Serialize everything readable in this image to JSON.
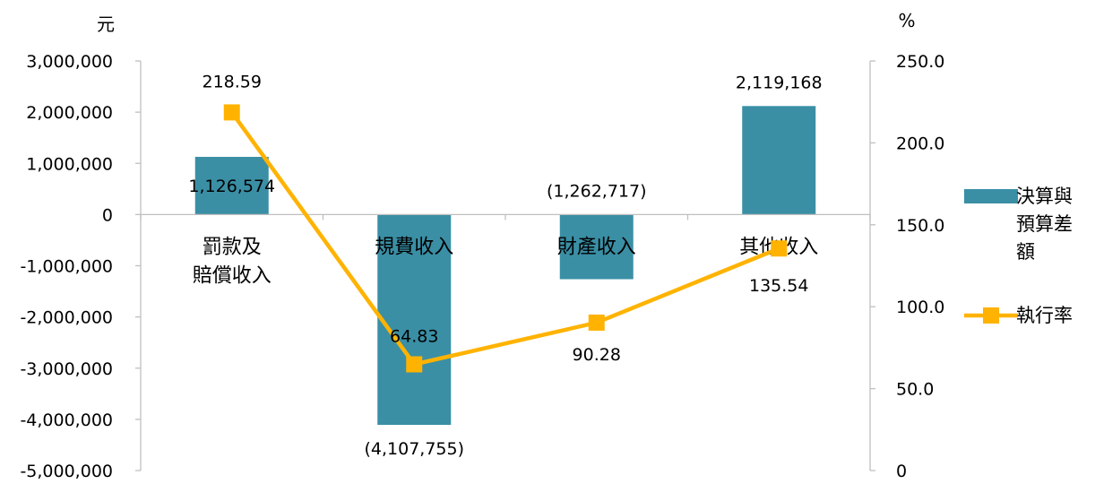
{
  "chart_data": {
    "type": "bar+line",
    "categories": [
      [
        "罰款及",
        "賠償收入"
      ],
      [
        "規費收入"
      ],
      [
        "財產收入"
      ],
      [
        "其他收入"
      ]
    ],
    "left_axis": {
      "unit": "元",
      "ylim": [
        -5000000,
        3000000
      ],
      "ticks": [
        3000000,
        2000000,
        1000000,
        0,
        -1000000,
        -2000000,
        -3000000,
        -4000000,
        -5000000
      ],
      "tick_labels": [
        "3,000,000",
        "2,000,000",
        "1,000,000",
        "0",
        "-1,000,000",
        "-2,000,000",
        "-3,000,000",
        "-4,000,000",
        "-5,000,000"
      ]
    },
    "right_axis": {
      "unit": "%",
      "ylim": [
        0,
        250
      ],
      "ticks": [
        250,
        200,
        150,
        100,
        50,
        0
      ],
      "tick_labels": [
        "250.0",
        "200.0",
        "150.0",
        "100.0",
        "50.0",
        "0"
      ]
    },
    "series": [
      {
        "name": "決算與預算差額",
        "legend_lines": [
          "決算與",
          "預算差",
          "額"
        ],
        "type": "bar",
        "axis": "left",
        "color": "#3a8fa5",
        "values": [
          1126574,
          -4107755,
          -1262717,
          2119168
        ],
        "labels": [
          "1,126,574",
          "(4,107,755)",
          "(1,262,717)",
          "2,119,168"
        ]
      },
      {
        "name": "執行率",
        "type": "line",
        "axis": "right",
        "color": "#ffb300",
        "values": [
          218.59,
          64.83,
          90.28,
          135.54
        ],
        "labels": [
          "218.59",
          "64.83",
          "90.28",
          "135.54"
        ]
      }
    ],
    "grid": false,
    "legend_position": "right"
  }
}
